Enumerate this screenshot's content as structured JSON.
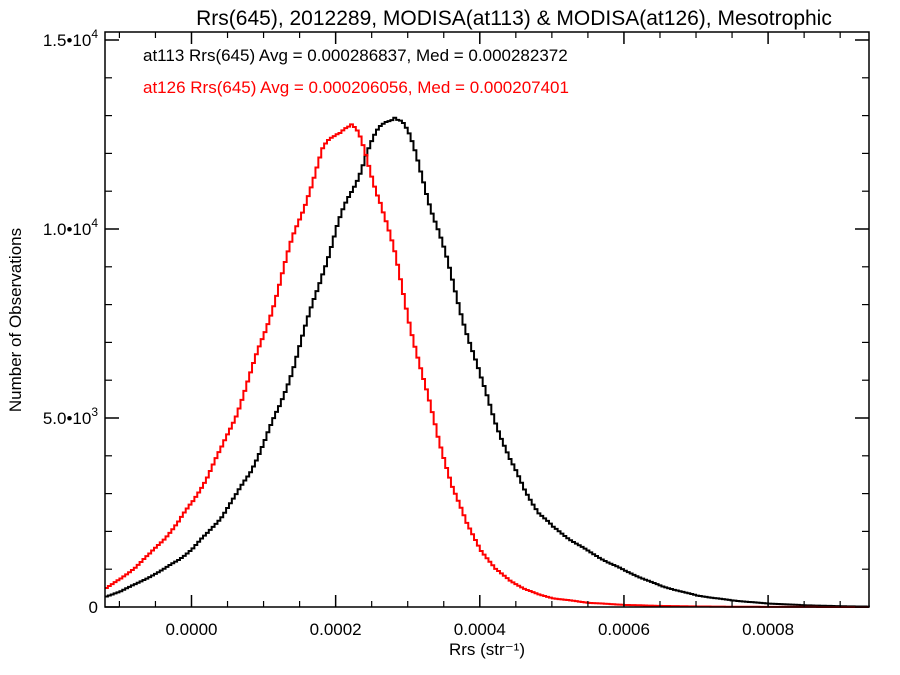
{
  "chart_data": {
    "type": "histogram",
    "title": "Rrs(645), 2012289, MODISA(at113) & MODISA(at126), Mesotrophic",
    "xlabel": "Rrs (str⁻¹)",
    "ylabel": "Number of Observations",
    "xlim": [
      -0.00012,
      0.00094
    ],
    "ylim": [
      0,
      15000
    ],
    "x_ticks": [
      0.0,
      0.0002,
      0.0004,
      0.0006,
      0.0008
    ],
    "x_tick_labels": [
      "0.0000",
      "0.0002",
      "0.0004",
      "0.0006",
      "0.0008"
    ],
    "y_ticks": [
      0,
      5000,
      10000,
      15000
    ],
    "y_tick_labels": [
      {
        "mantissa": "0",
        "exp": ""
      },
      {
        "mantissa": "5.0•10",
        "exp": "3"
      },
      {
        "mantissa": "1.0•10",
        "exp": "4"
      },
      {
        "mantissa": "1.5•10",
        "exp": "4"
      }
    ],
    "grid": false,
    "legend": [
      {
        "text": "at113 Rrs(645) Avg = 0.000286837, Med = 0.000282372",
        "color": "#000000"
      },
      {
        "text": "at126 Rrs(645) Avg = 0.000206056, Med = 0.000207401",
        "color": "#ff0000"
      }
    ],
    "series": [
      {
        "color": "#000000",
        "x": [
          -0.00012,
          -0.0001,
          -8e-05,
          -6e-05,
          -4e-05,
          -2e-05,
          0.0,
          2e-05,
          4e-05,
          6e-05,
          8e-05,
          0.0001,
          0.00012,
          0.00014,
          0.00016,
          0.00018,
          0.0002,
          0.00022,
          0.00024,
          0.00026,
          0.00027,
          0.00028,
          0.00029,
          0.0003,
          0.00032,
          0.00034,
          0.00036,
          0.00038,
          0.0004,
          0.00042,
          0.00044,
          0.00046,
          0.00048,
          0.0005,
          0.00055,
          0.0006,
          0.00065,
          0.0007,
          0.00075,
          0.0008,
          0.00085,
          0.0009,
          0.00094
        ],
        "y": [
          280,
          420,
          600,
          800,
          1000,
          1250,
          1550,
          1950,
          2400,
          2950,
          3600,
          4400,
          5300,
          6400,
          7600,
          8900,
          10000,
          11000,
          12000,
          12600,
          12900,
          13100,
          12900,
          12400,
          11300,
          10000,
          8600,
          7300,
          6000,
          4900,
          3900,
          3100,
          2500,
          2100,
          1450,
          950,
          550,
          300,
          170,
          90,
          45,
          20,
          10
        ]
      },
      {
        "color": "#ff0000",
        "x": [
          -0.00012,
          -0.0001,
          -8e-05,
          -6e-05,
          -4e-05,
          -2e-05,
          0.0,
          2e-05,
          4e-05,
          6e-05,
          8e-05,
          0.0001,
          0.00012,
          0.00014,
          0.00016,
          0.00018,
          0.0002,
          0.00021,
          0.00022,
          0.00023,
          0.00024,
          0.00026,
          0.00028,
          0.0003,
          0.00032,
          0.00034,
          0.00036,
          0.00038,
          0.0004,
          0.00042,
          0.00044,
          0.00046,
          0.00048,
          0.0005,
          0.00055,
          0.0006,
          0.00065,
          0.0007,
          0.00075,
          0.0008,
          0.00085,
          0.0009,
          0.00094
        ],
        "y": [
          500,
          750,
          1050,
          1400,
          1800,
          2250,
          2800,
          3450,
          4200,
          5100,
          6150,
          7300,
          8550,
          9800,
          11000,
          12000,
          12600,
          12800,
          12750,
          12400,
          11900,
          10800,
          9300,
          7600,
          6000,
          4500,
          3200,
          2200,
          1500,
          1000,
          700,
          480,
          330,
          230,
          110,
          55,
          28,
          14,
          7,
          4,
          2,
          1,
          0
        ]
      }
    ]
  }
}
